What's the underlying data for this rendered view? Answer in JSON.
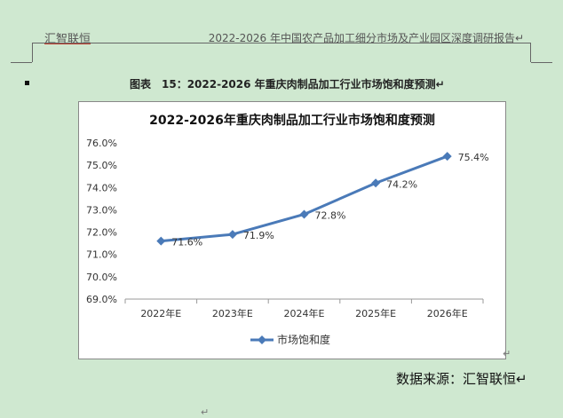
{
  "header": {
    "left": "汇智联恒",
    "right": "2022-2026 年中国农产品加工细分市场及产业园区深度调研报告↵"
  },
  "caption": "图表　15：2022-2026 年重庆肉制品加工行业市场饱和度预测↵",
  "source": "数据来源：汇智联恒↵",
  "colors": {
    "series": "#4a7ab8",
    "background": "#cfe8d0"
  },
  "chart_data": {
    "type": "line",
    "title": "2022-2026年重庆肉制品加工行业市场饱和度预测",
    "categories": [
      "2022年E",
      "2023年E",
      "2024年E",
      "2025年E",
      "2026年E"
    ],
    "series": [
      {
        "name": "市场饱和度",
        "values": [
          71.6,
          71.9,
          72.8,
          74.2,
          75.4
        ]
      }
    ],
    "data_labels": [
      "71.6%",
      "71.9%",
      "72.8%",
      "74.2%",
      "75.4%"
    ],
    "y_ticks": [
      "69.0%",
      "70.0%",
      "71.0%",
      "72.0%",
      "73.0%",
      "74.0%",
      "75.0%",
      "76.0%"
    ],
    "ylim": [
      69,
      76
    ],
    "grid": false,
    "legend": "bottom"
  }
}
